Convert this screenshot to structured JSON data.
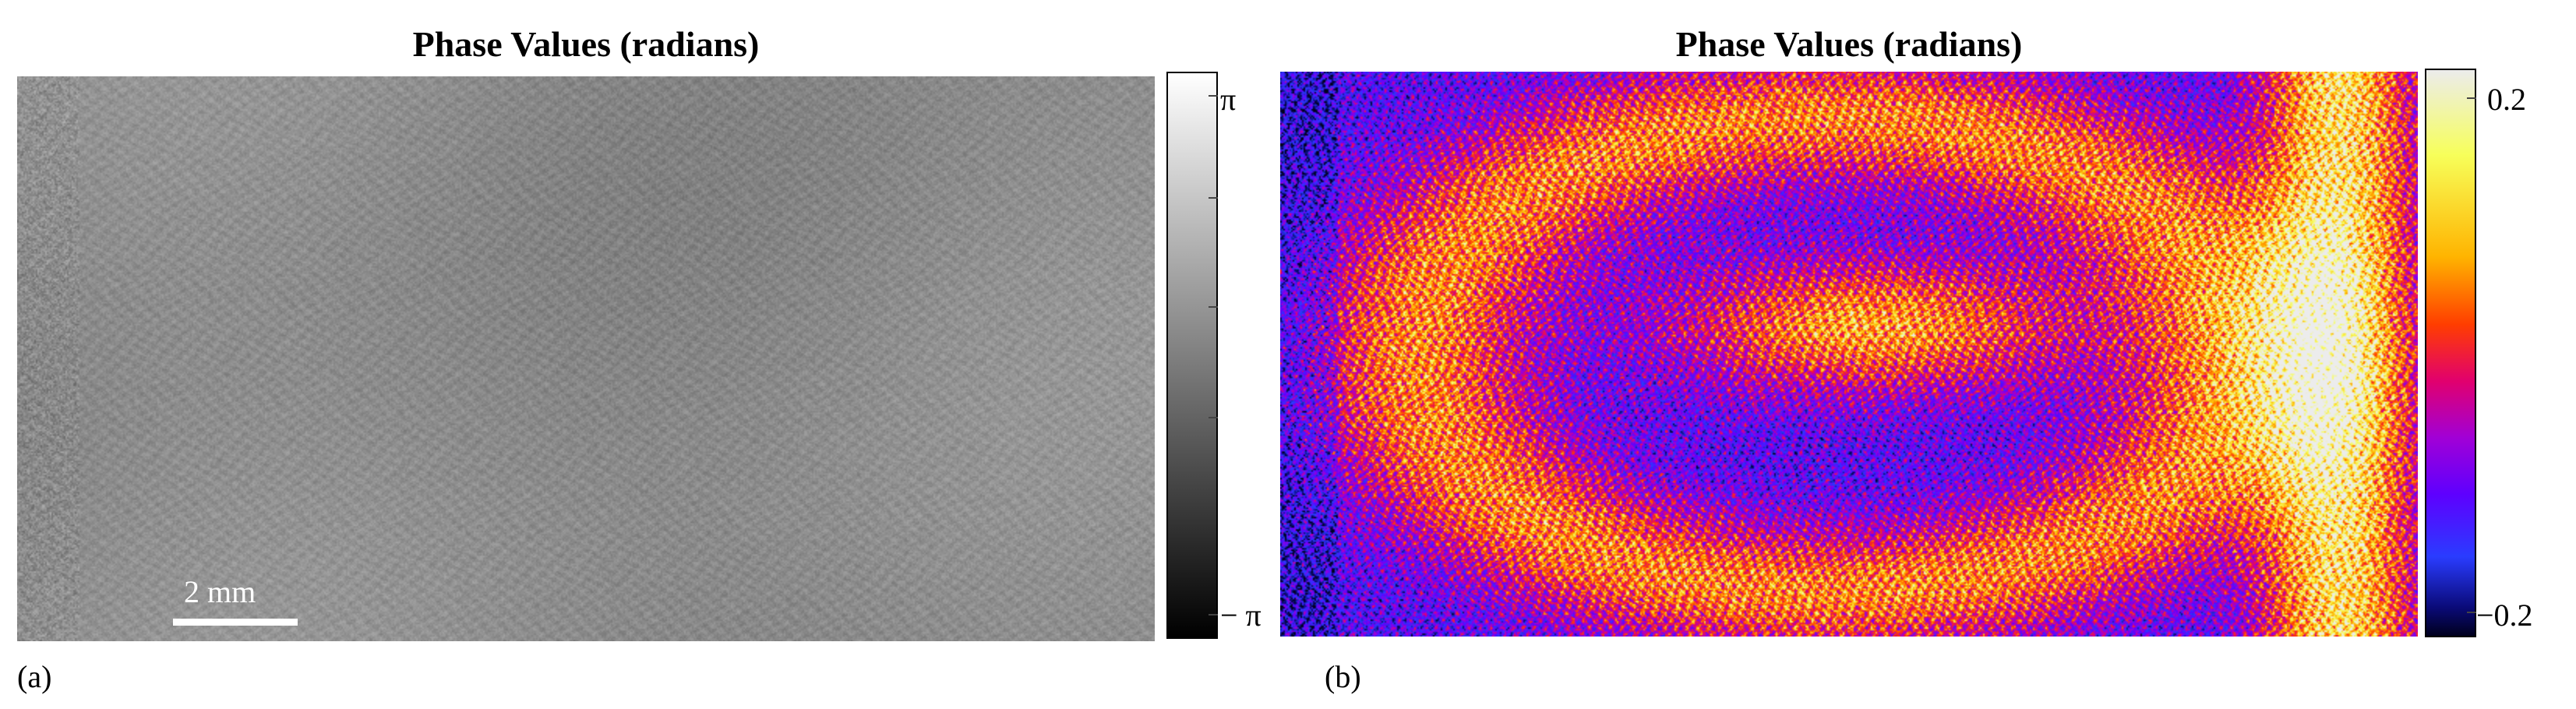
{
  "chart_data": [
    {
      "type": "heatmap",
      "title": "Phase Values (radians)",
      "panel_label": "(a)",
      "colormap": "gray",
      "colorbar": {
        "range": [
          -3.14159,
          3.14159
        ],
        "ticks": [
          -3.14159,
          -1.5708,
          0,
          1.5708,
          3.14159
        ],
        "tick_labels": [
          {
            "value": 3.14159,
            "label": "π"
          },
          {
            "value": -3.14159,
            "label": "− π"
          }
        ]
      },
      "scale_bar": {
        "label": "2 mm"
      },
      "grid": false
    },
    {
      "type": "heatmap",
      "title": "Phase Values (radians)",
      "panel_label": "(b)",
      "colormap": "gnuplot2",
      "colorbar": {
        "range": [
          -0.22,
          0.22
        ],
        "ticks": [
          -0.2,
          0.2
        ],
        "tick_labels": [
          {
            "value": 0.2,
            "label": "0.2"
          },
          {
            "value": -0.2,
            "label": "−0.2"
          }
        ]
      },
      "grid": false
    }
  ]
}
